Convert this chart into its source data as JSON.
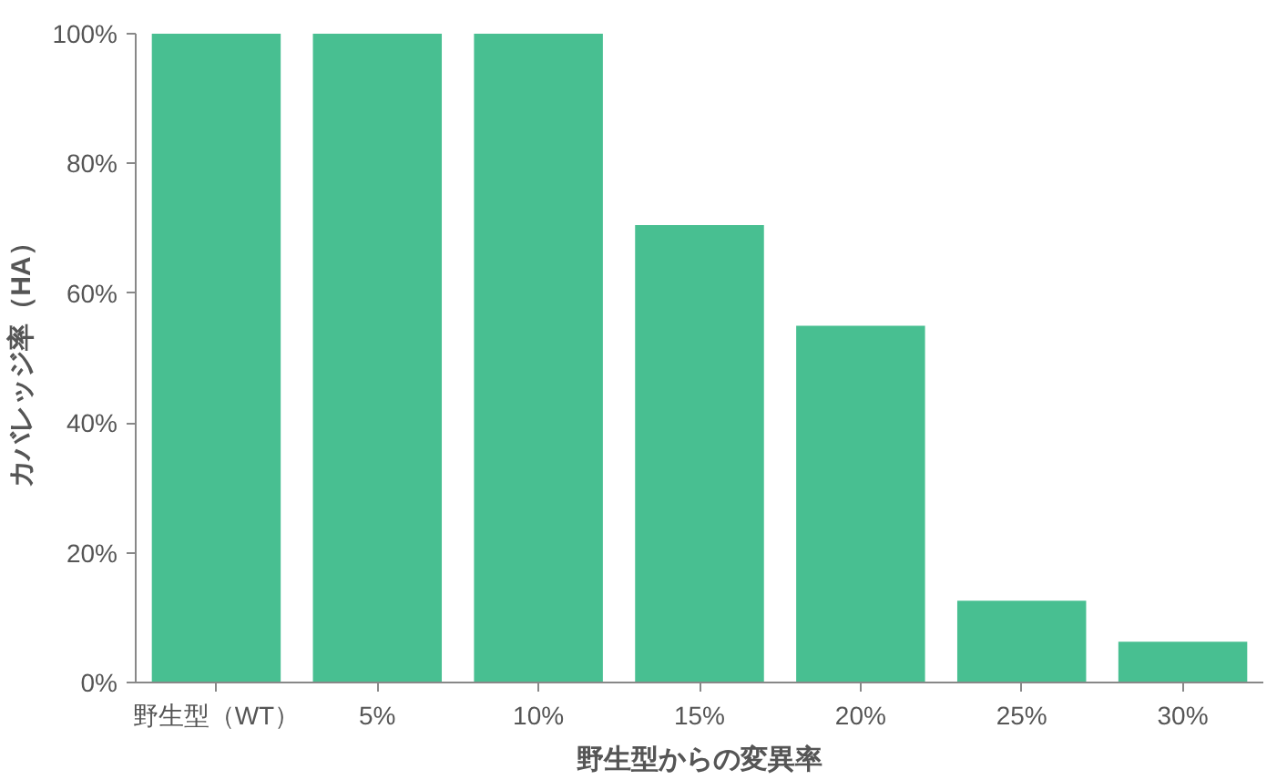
{
  "chart_data": {
    "type": "bar",
    "xlabel": "野生型からの変異率",
    "ylabel": "カバレッジ率（HA）",
    "categories": [
      "野生型（WT）",
      "5%",
      "10%",
      "15%",
      "20%",
      "25%",
      "30%"
    ],
    "values": [
      100,
      100,
      100,
      70.5,
      55,
      12.6,
      6.3
    ],
    "color": "#48bf91",
    "ylim": [
      0,
      100
    ],
    "yticks": [
      {
        "value": 0,
        "label": "0%"
      },
      {
        "value": 20,
        "label": "20%"
      },
      {
        "value": 40,
        "label": "40%"
      },
      {
        "value": 60,
        "label": "60%"
      },
      {
        "value": 80,
        "label": "80%"
      },
      {
        "value": 100,
        "label": "100%"
      }
    ],
    "grid": false
  }
}
